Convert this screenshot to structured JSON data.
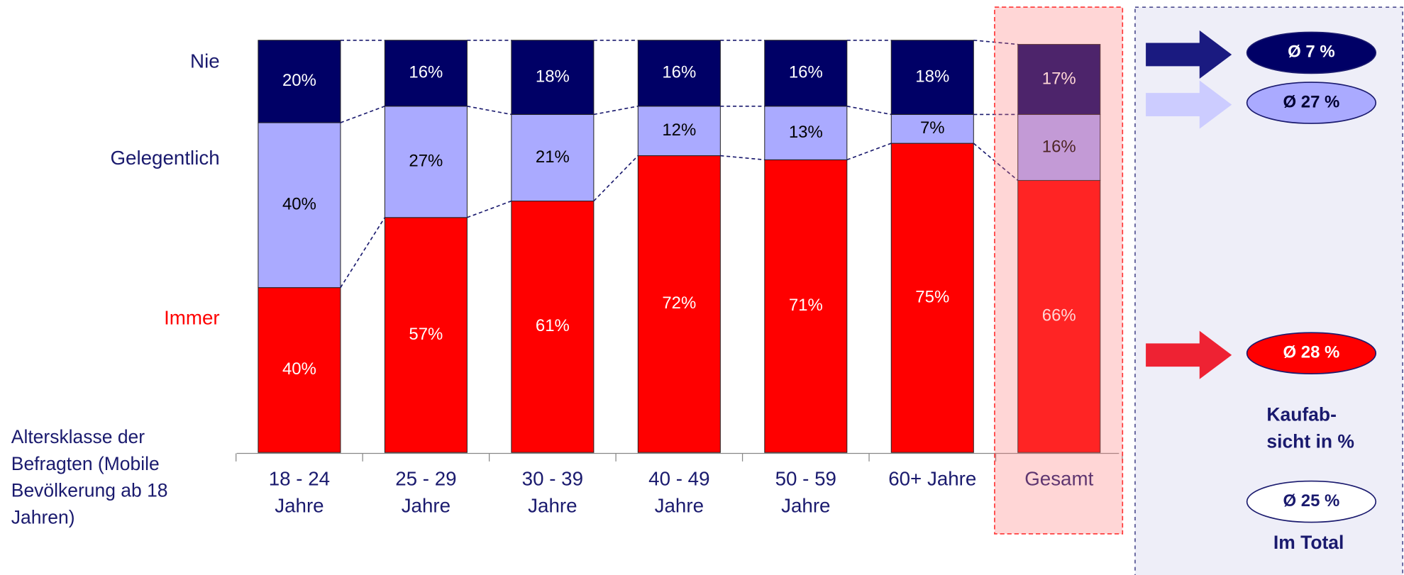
{
  "chart_data": {
    "type": "stacked_bar",
    "axis_title": [
      "Altersklasse der",
      "Befragten (Mobile",
      "Bevölkerung ab 18",
      "Jahren)"
    ],
    "categories": [
      [
        "18 - 24",
        "Jahre"
      ],
      [
        "25 - 29",
        "Jahre"
      ],
      [
        "30 - 39",
        "Jahre"
      ],
      [
        "40 - 49",
        "Jahre"
      ],
      [
        "50 - 59",
        "Jahre"
      ],
      [
        "60+ Jahre"
      ],
      [
        "Gesamt"
      ]
    ],
    "ylim": [
      0,
      100
    ],
    "highlight_category": 6,
    "series": [
      {
        "name": "Immer",
        "color": "#ff0000",
        "label_color": "#ffffff",
        "values": [
          40,
          57,
          61,
          72,
          71,
          75,
          66
        ],
        "value_labels": [
          "40%",
          "57%",
          "61%",
          "72%",
          "71%",
          "75%",
          "66%"
        ]
      },
      {
        "name": "Gelegentlich",
        "color": "#aaaaff",
        "label_color": "#000000",
        "values": [
          40,
          27,
          21,
          12,
          13,
          7,
          16
        ],
        "value_labels": [
          "40%",
          "27%",
          "21%",
          "12%",
          "13%",
          "7%",
          "16%"
        ]
      },
      {
        "name": "Nie",
        "color": "#000066",
        "label_color": "#ffffff",
        "values": [
          20,
          16,
          18,
          16,
          16,
          18,
          17
        ],
        "value_labels": [
          "20%",
          "16%",
          "18%",
          "16%",
          "16%",
          "18%",
          "17%"
        ]
      }
    ],
    "side_panel": {
      "markers": [
        {
          "text": "Ø 7 %",
          "color": "#000066",
          "text_color": "#ffffff"
        },
        {
          "text": "Ø 27 %",
          "color": "#aaaaff",
          "text_color": "#000033"
        },
        {
          "text": "Ø 28 %",
          "color": "#ff0000",
          "text_color": "#ffffff"
        }
      ],
      "caption": [
        "Kaufab-",
        "sicht in %"
      ],
      "total": "Ø 25 %",
      "total_caption": "Im Total"
    }
  }
}
